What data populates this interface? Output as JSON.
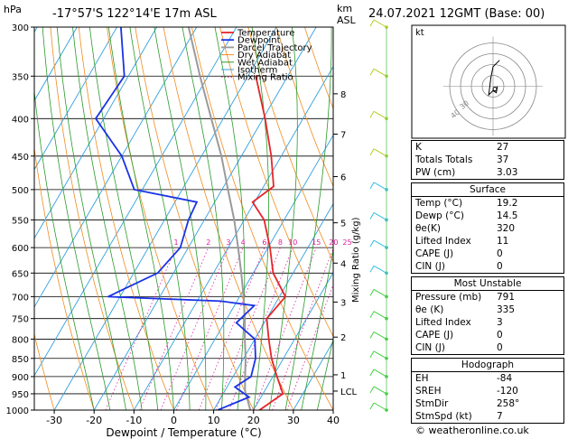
{
  "header": {
    "hpa_label": "hPa",
    "location": "-17°57'S  122°14'E  17m  ASL",
    "km_label": "km",
    "asl_label": "ASL",
    "date": "24.07.2021  12GMT  (Base: 00)"
  },
  "axes": {
    "xlabel": "Dewpoint / Temperature (°C)",
    "x_ticks": [
      -30,
      -20,
      -10,
      0,
      10,
      20,
      30,
      40
    ],
    "pressure_levels": [
      300,
      350,
      400,
      450,
      500,
      550,
      600,
      650,
      700,
      750,
      800,
      850,
      900,
      950,
      1000
    ],
    "km_ticks": [
      {
        "label": "8",
        "p": 370
      },
      {
        "label": "7",
        "p": 420
      },
      {
        "label": "6",
        "p": 480
      },
      {
        "label": "5",
        "p": 555
      },
      {
        "label": "4",
        "p": 630
      },
      {
        "label": "3",
        "p": 712
      },
      {
        "label": "2",
        "p": 795
      },
      {
        "label": "1",
        "p": 895
      },
      {
        "label": "LCL",
        "p": 942
      }
    ],
    "mixing_ratio_label": "Mixing Ratio  (g/kg)",
    "mixing_ratio_values": [
      "1",
      "2",
      "3",
      "4",
      "6",
      "8",
      "10",
      "15",
      "20",
      "25"
    ]
  },
  "legend": [
    "Temperature",
    "Dewpoint",
    "Parcel Trajectory",
    "Dry Adiabat",
    "Wet Adiabat",
    "Isotherm",
    "Mixing Ratio"
  ],
  "colors": {
    "temperature": "#e8242a",
    "dewpoint": "#1a33e6",
    "parcel": "#9a9a9a",
    "dry_adiabat": "#f08c1e",
    "wet_adiabat": "#2a9a2a",
    "isotherm": "#30a0e0",
    "mixing_ratio": "#e020a0",
    "wind_low": "#30c0e0",
    "wind_mid": "#40d040",
    "wind_high": "#b0d020"
  },
  "chart_data": {
    "type": "skew-t",
    "title": "-17°57'S  122°14'E  17m  ASL",
    "xlabel": "Dewpoint / Temperature (°C)",
    "ylabel": "hPa",
    "xlim": [
      -35,
      40
    ],
    "ylim": [
      1000,
      300
    ],
    "temperature": [
      {
        "p": 1000,
        "t": 21.5
      },
      {
        "p": 950,
        "t": 25
      },
      {
        "p": 900,
        "t": 21
      },
      {
        "p": 850,
        "t": 17
      },
      {
        "p": 800,
        "t": 13.5
      },
      {
        "p": 750,
        "t": 10
      },
      {
        "p": 700,
        "t": 11.5
      },
      {
        "p": 650,
        "t": 5
      },
      {
        "p": 600,
        "t": 0.5
      },
      {
        "p": 550,
        "t": -5
      },
      {
        "p": 520,
        "t": -10.5
      },
      {
        "p": 495,
        "t": -7.5
      },
      {
        "p": 450,
        "t": -12.5
      },
      {
        "p": 400,
        "t": -19.5
      },
      {
        "p": 350,
        "t": -28
      }
    ],
    "dewpoint": [
      {
        "p": 1000,
        "t": 11
      },
      {
        "p": 960,
        "t": 17
      },
      {
        "p": 930,
        "t": 12
      },
      {
        "p": 900,
        "t": 14.5
      },
      {
        "p": 850,
        "t": 13
      },
      {
        "p": 800,
        "t": 10
      },
      {
        "p": 760,
        "t": 3
      },
      {
        "p": 720,
        "t": 5
      },
      {
        "p": 710,
        "t": -4
      },
      {
        "p": 700,
        "t": -33
      },
      {
        "p": 650,
        "t": -24
      },
      {
        "p": 600,
        "t": -22
      },
      {
        "p": 550,
        "t": -24
      },
      {
        "p": 520,
        "t": -24.5
      },
      {
        "p": 500,
        "t": -42
      },
      {
        "p": 450,
        "t": -50
      },
      {
        "p": 400,
        "t": -62
      },
      {
        "p": 350,
        "t": -61
      },
      {
        "p": 300,
        "t": -69
      }
    ],
    "parcel": [
      {
        "p": 1000,
        "t": 19.2
      },
      {
        "p": 940,
        "t": 15
      },
      {
        "p": 900,
        "t": 13
      },
      {
        "p": 850,
        "t": 10.5
      },
      {
        "p": 800,
        "t": 7.5
      },
      {
        "p": 750,
        "t": 4.5
      },
      {
        "p": 700,
        "t": 1
      },
      {
        "p": 650,
        "t": -3
      },
      {
        "p": 600,
        "t": -7.5
      },
      {
        "p": 550,
        "t": -12.5
      },
      {
        "p": 500,
        "t": -18.5
      },
      {
        "p": 450,
        "t": -25
      },
      {
        "p": 400,
        "t": -33
      },
      {
        "p": 350,
        "t": -42
      },
      {
        "p": 300,
        "t": -52
      }
    ]
  },
  "hodograph": {
    "unit_label": "kt",
    "ring_labels": [
      "40",
      "30"
    ],
    "trace": [
      {
        "u": 2,
        "v": 0
      },
      {
        "u": 1.5,
        "v": -3
      },
      {
        "u": 0,
        "v": -2
      },
      {
        "u": -2,
        "v": -4
      },
      {
        "u": -1,
        "v": 4
      },
      {
        "u": 0,
        "v": 9
      },
      {
        "u": 3,
        "v": 12
      }
    ]
  },
  "indices": {
    "rows": [
      {
        "label": "K",
        "value": "27"
      },
      {
        "label": "Totals Totals",
        "value": "37"
      },
      {
        "label": "PW (cm)",
        "value": "3.03"
      }
    ]
  },
  "surface": {
    "title": "Surface",
    "rows": [
      {
        "label": "Temp (°C)",
        "value": "19.2"
      },
      {
        "label": "Dewp (°C)",
        "value": "14.5"
      },
      {
        "label": "θe(K)",
        "value": "320"
      },
      {
        "label": "Lifted Index",
        "value": "11"
      },
      {
        "label": "CAPE (J)",
        "value": "0"
      },
      {
        "label": "CIN (J)",
        "value": "0"
      }
    ]
  },
  "most_unstable": {
    "title": "Most Unstable",
    "rows": [
      {
        "label": "Pressure (mb)",
        "value": "791"
      },
      {
        "label": "θe (K)",
        "value": "335"
      },
      {
        "label": "Lifted Index",
        "value": "3"
      },
      {
        "label": "CAPE (J)",
        "value": "0"
      },
      {
        "label": "CIN (J)",
        "value": "0"
      }
    ]
  },
  "hodograph_table": {
    "title": "Hodograph",
    "rows": [
      {
        "label": "EH",
        "value": "-84"
      },
      {
        "label": "SREH",
        "value": "-120"
      },
      {
        "label": "StmDir",
        "value": "258°"
      },
      {
        "label": "StmSpd (kt)",
        "value": "7"
      }
    ]
  },
  "credit": "© weatheronline.co.uk"
}
